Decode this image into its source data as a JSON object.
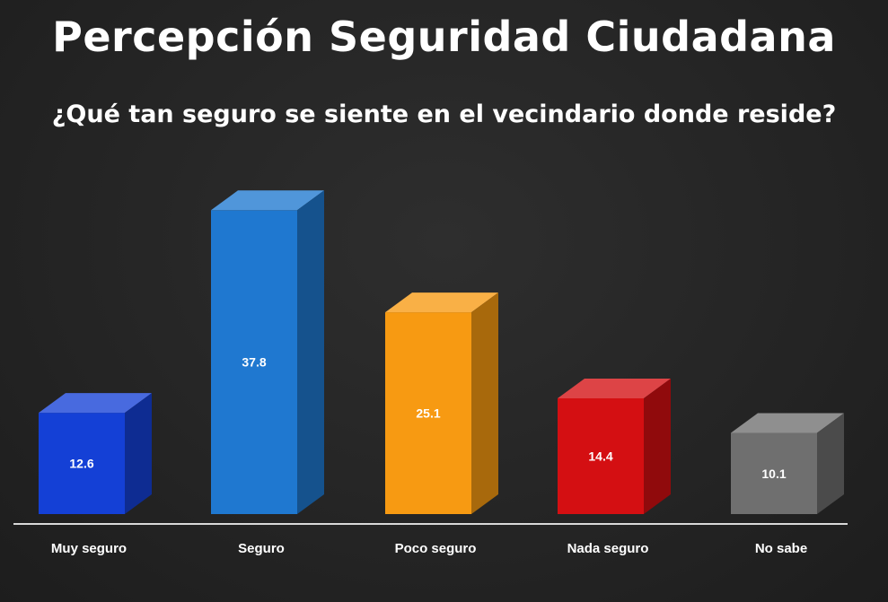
{
  "chart_data": {
    "type": "bar",
    "title": "Percepción Seguridad Ciudadana",
    "subtitle": "¿Qué tan seguro se siente en el vecindario donde reside?",
    "xlabel": "",
    "ylabel": "",
    "categories": [
      "Muy seguro",
      "Seguro",
      "Poco seguro",
      "Nada seguro",
      "No sabe"
    ],
    "values": [
      12.6,
      37.8,
      25.1,
      14.4,
      10.1
    ],
    "value_labels": [
      "12.6",
      "37.8",
      "25.1",
      "14.4",
      "10.1"
    ],
    "colors": [
      "#1440d6",
      "#1f78d0",
      "#f79a12",
      "#d40f12",
      "#6f6f6f"
    ],
    "ylim": [
      0,
      40
    ],
    "grid": false,
    "legend": "none",
    "style": "3d"
  }
}
